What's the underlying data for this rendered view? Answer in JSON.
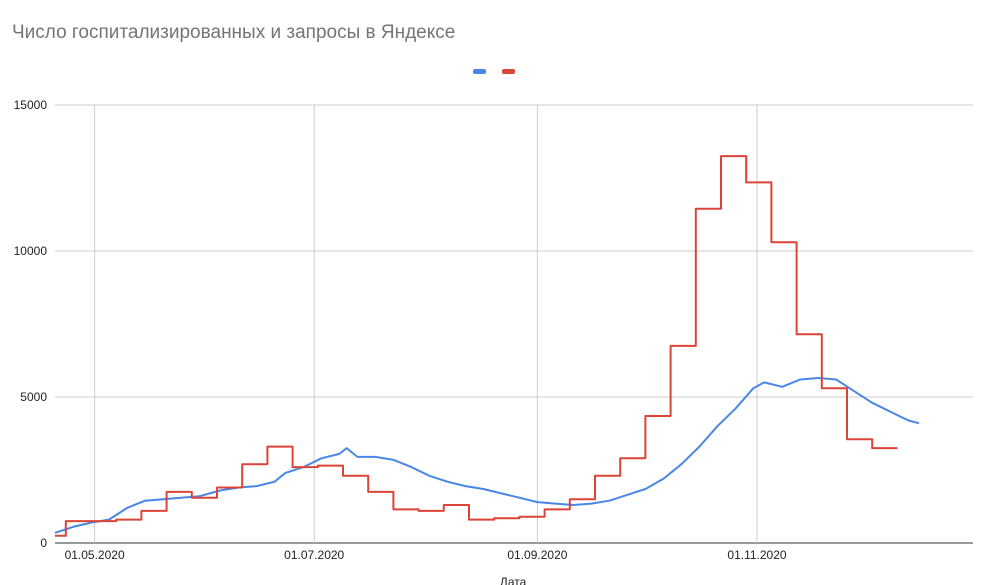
{
  "chart_data": {
    "type": "line",
    "title": "Число госпитализированных и запросы в Яндексе",
    "xlabel": "Дата",
    "ylabel": "",
    "ylim": [
      0,
      15000
    ],
    "y_ticks": [
      "0",
      "5000",
      "10000",
      "15000"
    ],
    "x_ticks": [
      "01.05.2020",
      "01.07.2020",
      "01.09.2020",
      "01.11.2020"
    ],
    "xlim": [
      "2020-04-20",
      "2020-12-31"
    ],
    "grid": true,
    "legend_position": "top",
    "series": [
      {
        "name": "",
        "color": "#4a86e8",
        "points": [
          [
            "2020-04-20",
            350
          ],
          [
            "2020-04-25",
            550
          ],
          [
            "2020-04-30",
            700
          ],
          [
            "2020-05-05",
            800
          ],
          [
            "2020-05-10",
            1200
          ],
          [
            "2020-05-15",
            1450
          ],
          [
            "2020-05-20",
            1500
          ],
          [
            "2020-05-25",
            1550
          ],
          [
            "2020-05-30",
            1600
          ],
          [
            "2020-06-05",
            1800
          ],
          [
            "2020-06-10",
            1900
          ],
          [
            "2020-06-15",
            1950
          ],
          [
            "2020-06-20",
            2100
          ],
          [
            "2020-06-23",
            2400
          ],
          [
            "2020-06-28",
            2600
          ],
          [
            "2020-07-03",
            2900
          ],
          [
            "2020-07-08",
            3050
          ],
          [
            "2020-07-10",
            3250
          ],
          [
            "2020-07-13",
            2950
          ],
          [
            "2020-07-18",
            2950
          ],
          [
            "2020-07-23",
            2850
          ],
          [
            "2020-07-28",
            2600
          ],
          [
            "2020-08-02",
            2300
          ],
          [
            "2020-08-07",
            2100
          ],
          [
            "2020-08-12",
            1950
          ],
          [
            "2020-08-17",
            1850
          ],
          [
            "2020-08-22",
            1700
          ],
          [
            "2020-08-27",
            1550
          ],
          [
            "2020-09-01",
            1400
          ],
          [
            "2020-09-06",
            1350
          ],
          [
            "2020-09-11",
            1300
          ],
          [
            "2020-09-16",
            1350
          ],
          [
            "2020-09-21",
            1450
          ],
          [
            "2020-09-26",
            1650
          ],
          [
            "2020-10-01",
            1850
          ],
          [
            "2020-10-06",
            2200
          ],
          [
            "2020-10-11",
            2700
          ],
          [
            "2020-10-16",
            3300
          ],
          [
            "2020-10-21",
            4000
          ],
          [
            "2020-10-26",
            4600
          ],
          [
            "2020-10-31",
            5300
          ],
          [
            "2020-11-03",
            5500
          ],
          [
            "2020-11-08",
            5350
          ],
          [
            "2020-11-13",
            5600
          ],
          [
            "2020-11-18",
            5650
          ],
          [
            "2020-11-23",
            5600
          ],
          [
            "2020-11-28",
            5200
          ],
          [
            "2020-12-03",
            4800
          ],
          [
            "2020-12-08",
            4500
          ],
          [
            "2020-12-13",
            4200
          ],
          [
            "2020-12-16",
            4100
          ]
        ]
      },
      {
        "name": "",
        "color": "#db4437",
        "points": [
          [
            "2020-04-20",
            250
          ],
          [
            "2020-04-23",
            250
          ],
          [
            "2020-04-23",
            750
          ],
          [
            "2020-05-07",
            750
          ],
          [
            "2020-05-07",
            800
          ],
          [
            "2020-05-14",
            800
          ],
          [
            "2020-05-14",
            1100
          ],
          [
            "2020-05-21",
            1100
          ],
          [
            "2020-05-21",
            1750
          ],
          [
            "2020-05-28",
            1750
          ],
          [
            "2020-05-28",
            1550
          ],
          [
            "2020-06-04",
            1550
          ],
          [
            "2020-06-04",
            1900
          ],
          [
            "2020-06-11",
            1900
          ],
          [
            "2020-06-11",
            2700
          ],
          [
            "2020-06-18",
            2700
          ],
          [
            "2020-06-18",
            3300
          ],
          [
            "2020-06-25",
            3300
          ],
          [
            "2020-06-25",
            2600
          ],
          [
            "2020-07-02",
            2600
          ],
          [
            "2020-07-02",
            2650
          ],
          [
            "2020-07-09",
            2650
          ],
          [
            "2020-07-09",
            2300
          ],
          [
            "2020-07-16",
            2300
          ],
          [
            "2020-07-16",
            1750
          ],
          [
            "2020-07-23",
            1750
          ],
          [
            "2020-07-23",
            1150
          ],
          [
            "2020-07-30",
            1150
          ],
          [
            "2020-07-30",
            1100
          ],
          [
            "2020-08-06",
            1100
          ],
          [
            "2020-08-06",
            1300
          ],
          [
            "2020-08-13",
            1300
          ],
          [
            "2020-08-13",
            800
          ],
          [
            "2020-08-20",
            800
          ],
          [
            "2020-08-20",
            850
          ],
          [
            "2020-08-27",
            850
          ],
          [
            "2020-08-27",
            900
          ],
          [
            "2020-09-03",
            900
          ],
          [
            "2020-09-03",
            1150
          ],
          [
            "2020-09-10",
            1150
          ],
          [
            "2020-09-10",
            1500
          ],
          [
            "2020-09-17",
            1500
          ],
          [
            "2020-09-17",
            2300
          ],
          [
            "2020-09-24",
            2300
          ],
          [
            "2020-09-24",
            2900
          ],
          [
            "2020-10-01",
            2900
          ],
          [
            "2020-10-01",
            4350
          ],
          [
            "2020-10-08",
            4350
          ],
          [
            "2020-10-08",
            6750
          ],
          [
            "2020-10-15",
            6750
          ],
          [
            "2020-10-15",
            11450
          ],
          [
            "2020-10-22",
            11450
          ],
          [
            "2020-10-22",
            13250
          ],
          [
            "2020-10-29",
            13250
          ],
          [
            "2020-10-29",
            12350
          ],
          [
            "2020-11-05",
            12350
          ],
          [
            "2020-11-05",
            10300
          ],
          [
            "2020-11-12",
            10300
          ],
          [
            "2020-11-12",
            7150
          ],
          [
            "2020-11-19",
            7150
          ],
          [
            "2020-11-19",
            5300
          ],
          [
            "2020-11-26",
            5300
          ],
          [
            "2020-11-26",
            3550
          ],
          [
            "2020-12-03",
            3550
          ],
          [
            "2020-12-03",
            3250
          ],
          [
            "2020-12-10",
            3250
          ]
        ]
      }
    ]
  }
}
